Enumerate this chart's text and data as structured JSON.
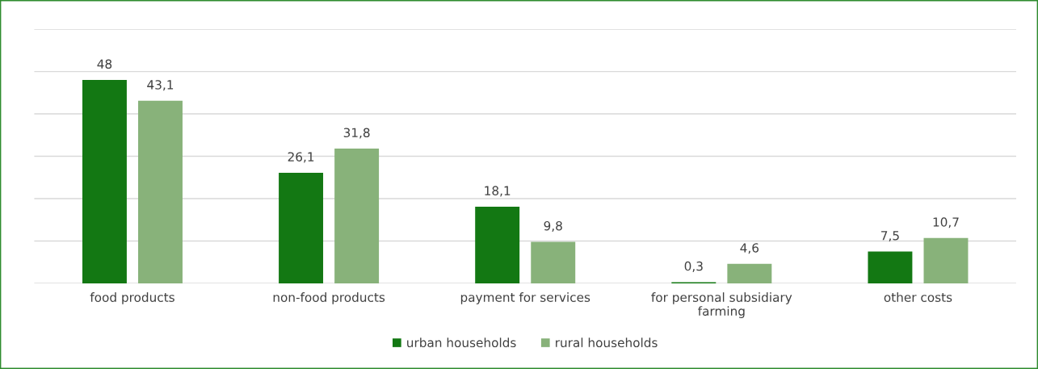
{
  "chart_data": {
    "type": "bar",
    "categories": [
      "food products",
      "non-food products",
      "payment for services",
      "for personal subsidiary\nfarming",
      "other costs"
    ],
    "series": [
      {
        "name": "urban households",
        "color": "#137813",
        "values": [
          48,
          26.1,
          18.1,
          0.3,
          7.5
        ],
        "value_labels": [
          "48",
          "26,1",
          "18,1",
          "0,3",
          "7,5"
        ]
      },
      {
        "name": "rural households",
        "color": "#88b27a",
        "values": [
          43.1,
          31.8,
          9.8,
          4.6,
          10.7
        ],
        "value_labels": [
          "43,1",
          "31,8",
          "9,8",
          "4,6",
          "10,7"
        ]
      }
    ],
    "ylim": [
      0,
      60
    ],
    "yticks": [
      {
        "value": 0,
        "label": null
      },
      {
        "value": 10,
        "label": null
      },
      {
        "value": 20,
        "label": null
      },
      {
        "value": 30,
        "label": null
      },
      {
        "value": 40,
        "label": null
      },
      {
        "value": 50,
        "label": null
      },
      {
        "value": 60,
        "label": null
      }
    ],
    "tick_labels": "x",
    "grid": "y",
    "legend": "bottom"
  }
}
